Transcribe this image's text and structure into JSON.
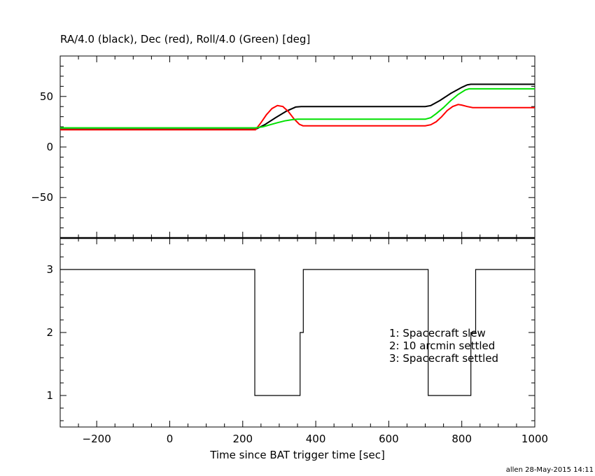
{
  "chart_data": [
    {
      "type": "line",
      "title": "RA/4.0 (black), Dec (red), Roll/4.0 (Green) [deg]",
      "xlim": [
        -300,
        1000
      ],
      "ylim": [
        -90,
        90
      ],
      "x_ticks": [
        -200,
        0,
        200,
        400,
        600,
        800,
        1000
      ],
      "y_ticks": [
        -50,
        0,
        50
      ],
      "series": [
        {
          "color": "#000000",
          "x": [
            -300,
            235,
            260,
            290,
            320,
            345,
            360,
            700,
            715,
            740,
            770,
            800,
            815,
            825,
            1000
          ],
          "values": [
            17.5,
            17.5,
            22,
            29,
            35.5,
            39.5,
            40,
            40,
            41,
            46,
            53,
            59,
            61.5,
            62,
            62
          ]
        },
        {
          "color": "#ff0000",
          "x": [
            -300,
            235,
            250,
            265,
            280,
            295,
            310,
            325,
            340,
            355,
            365,
            700,
            715,
            730,
            745,
            760,
            775,
            790,
            800,
            815,
            830,
            1000
          ],
          "values": [
            17,
            17,
            24,
            32,
            38,
            41,
            40,
            35,
            28,
            22.5,
            21,
            21,
            22,
            25,
            30,
            36,
            40,
            42,
            41.5,
            40,
            39,
            39
          ]
        },
        {
          "color": "#00e000",
          "x": [
            -300,
            235,
            255,
            275,
            295,
            315,
            335,
            350,
            360,
            700,
            715,
            730,
            750,
            770,
            790,
            810,
            820,
            1000
          ],
          "values": [
            19,
            19,
            20,
            22,
            24,
            25.8,
            27,
            27.5,
            27.5,
            27.5,
            29,
            33,
            39,
            46,
            52,
            56.5,
            57.5,
            57.5
          ]
        }
      ]
    },
    {
      "type": "line",
      "xlabel": "Time since BAT trigger time [sec]",
      "xlim": [
        -300,
        1000
      ],
      "ylim": [
        0.5,
        3.5
      ],
      "x_ticks": [
        -200,
        0,
        200,
        400,
        600,
        800,
        1000
      ],
      "y_ticks": [
        1,
        2,
        3
      ],
      "series": [
        {
          "color": "#000000",
          "step": true,
          "x": [
            -300,
            233,
            233,
            357,
            357,
            366,
            366,
            708,
            708,
            825,
            825,
            838,
            838,
            1000
          ],
          "values": [
            3,
            3,
            1,
            1,
            2,
            2,
            3,
            3,
            1,
            1,
            2,
            2,
            3,
            3
          ]
        }
      ],
      "legend": [
        "1: Spacecraft slew",
        "2: 10 arcmin settled",
        "3: Spacecraft settled"
      ]
    }
  ],
  "footer": "allen 28-May-2015 14:11"
}
